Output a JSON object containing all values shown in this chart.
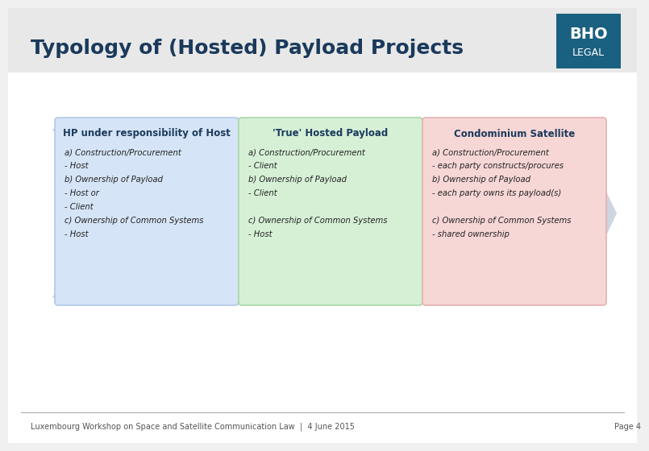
{
  "title": "Typology of (Hosted) Payload Projects",
  "title_color": "#1a3a5c",
  "bg_color": "#f0f0f0",
  "slide_bg": "#ffffff",
  "footer_text": "Luxembourg Workshop on Space and Satellite Communication Law  |  4 June 2015",
  "footer_page": "Page 4",
  "arrow_color": "#c8d0dc",
  "boxes": [
    {
      "header": "HP under responsibility of Host",
      "header_bold": true,
      "bg_color": "#d6e4f7",
      "border_color": "#b0c8e8",
      "lines": [
        "a) Construction/Procurement",
        "- Host",
        "b) Ownership of Payload",
        "- Host or",
        "- Client",
        "c) Ownership of Common Systems",
        "- Host"
      ],
      "text_color": "#222222",
      "header_color": "#1a3a5c"
    },
    {
      "header": "'True' Hosted Payload",
      "header_bold": true,
      "bg_color": "#d6f0d6",
      "border_color": "#a8d8a8",
      "lines": [
        "a) Construction/Procurement",
        "- Client",
        "b) Ownership of Payload",
        "- Client",
        "",
        "c) Ownership of Common Systems",
        "- Host"
      ],
      "text_color": "#222222",
      "header_color": "#1a3a5c"
    },
    {
      "header": "Condominium Satellite",
      "header_bold": true,
      "bg_color": "#f7d6d6",
      "border_color": "#e8b0b0",
      "lines": [
        "a) Construction/Procurement",
        "- each party constructs/procures",
        "b) Ownership of Payload",
        "- each party owns its payload(s)",
        "",
        "c) Ownership of Common Systems",
        "- shared ownership"
      ],
      "text_color": "#222222",
      "header_color": "#1a3a5c"
    }
  ],
  "logo_bg": "#1a6080",
  "logo_text1": "BHO",
  "logo_text2": "LEGAL"
}
